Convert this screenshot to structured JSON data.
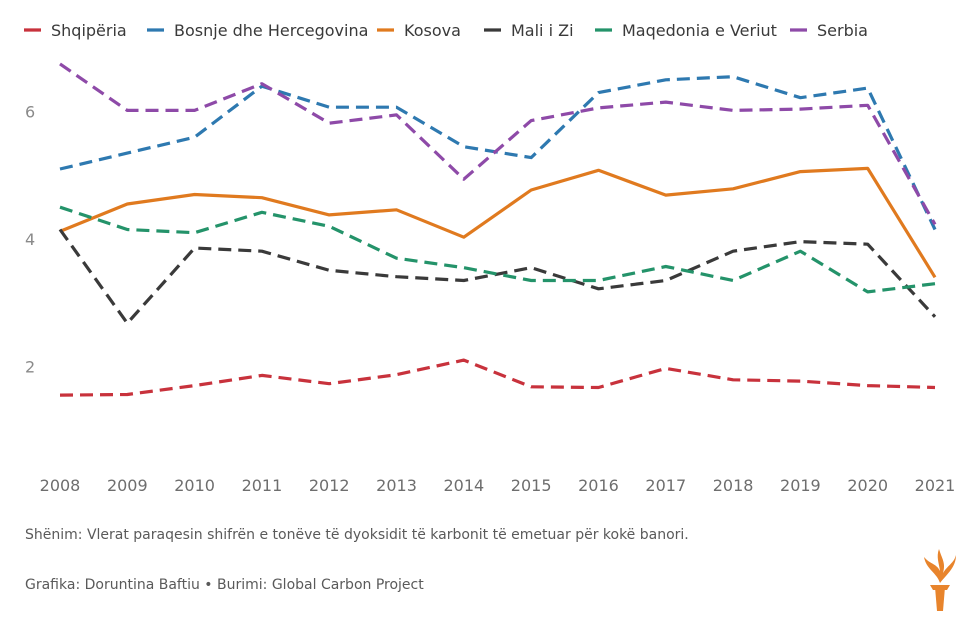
{
  "chart_data": {
    "type": "line",
    "title": "",
    "xlabel": "",
    "ylabel": "",
    "x": [
      "2008",
      "2009",
      "2010",
      "2011",
      "2012",
      "2013",
      "2014",
      "2015",
      "2016",
      "2017",
      "2018",
      "2019",
      "2020",
      "2021"
    ],
    "yticks": [
      "2",
      "4",
      "6"
    ],
    "ylim": [
      0.5,
      7.0
    ],
    "grid": false,
    "legend_position": "top",
    "series": [
      {
        "name": "Shqipëria",
        "color": "#c8323c",
        "style": "dashed",
        "values": [
          1.55,
          1.56,
          1.7,
          1.86,
          1.73,
          1.87,
          2.1,
          1.68,
          1.67,
          1.97,
          1.79,
          1.77,
          1.7,
          1.67
        ]
      },
      {
        "name": "Bosnje dhe Hercegovina",
        "color": "#2e79b0",
        "style": "dashed",
        "values": [
          5.1,
          5.35,
          5.6,
          6.4,
          6.07,
          6.07,
          5.45,
          5.28,
          6.3,
          6.5,
          6.55,
          6.22,
          6.37,
          4.15
        ]
      },
      {
        "name": "Kosova",
        "color": "#e07a1f",
        "style": "solid",
        "values": [
          4.12,
          4.55,
          4.7,
          4.65,
          4.38,
          4.46,
          4.03,
          4.77,
          5.08,
          4.69,
          4.79,
          5.06,
          5.11,
          3.4
        ]
      },
      {
        "name": "Mali i Zi",
        "color": "#3a3a3a",
        "style": "dashed",
        "values": [
          4.15,
          2.68,
          3.86,
          3.81,
          3.51,
          3.41,
          3.35,
          3.55,
          3.22,
          3.35,
          3.81,
          3.96,
          3.92,
          2.78
        ]
      },
      {
        "name": "Maqedonia e Veriut",
        "color": "#24936a",
        "style": "dashed",
        "values": [
          4.5,
          4.15,
          4.1,
          4.42,
          4.2,
          3.7,
          3.55,
          3.35,
          3.35,
          3.57,
          3.35,
          3.81,
          3.17,
          3.3
        ]
      },
      {
        "name": "Serbia",
        "color": "#8e4aa8",
        "style": "dashed",
        "values": [
          6.75,
          6.02,
          6.02,
          6.44,
          5.82,
          5.95,
          4.94,
          5.86,
          6.06,
          6.15,
          6.02,
          6.04,
          6.1,
          4.23
        ]
      }
    ]
  },
  "notes": {
    "note": "Shënim: Vlerat paraqesin shifrën e tonëve të dyoksidit të karbonit të emetuar për kokë banori.",
    "credit": "Grafika: Doruntina Baftiu • Burimi: Global Carbon Project"
  },
  "logo": {
    "icon": "torch-logo-icon",
    "color": "#e8842c"
  }
}
